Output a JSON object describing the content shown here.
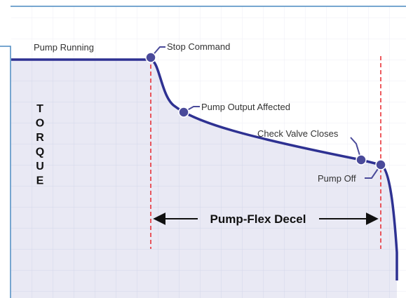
{
  "diagram": {
    "axis_label": [
      "T",
      "O",
      "R",
      "Q",
      "U",
      "E"
    ],
    "labels": {
      "pump_running": "Pump Running",
      "stop_command": "Stop Command",
      "pump_output_affected": "Pump Output Affected",
      "check_valve_closes": "Check Valve Closes",
      "pump_off": "Pump Off"
    },
    "span_label": "Pump-Flex Decel"
  }
}
